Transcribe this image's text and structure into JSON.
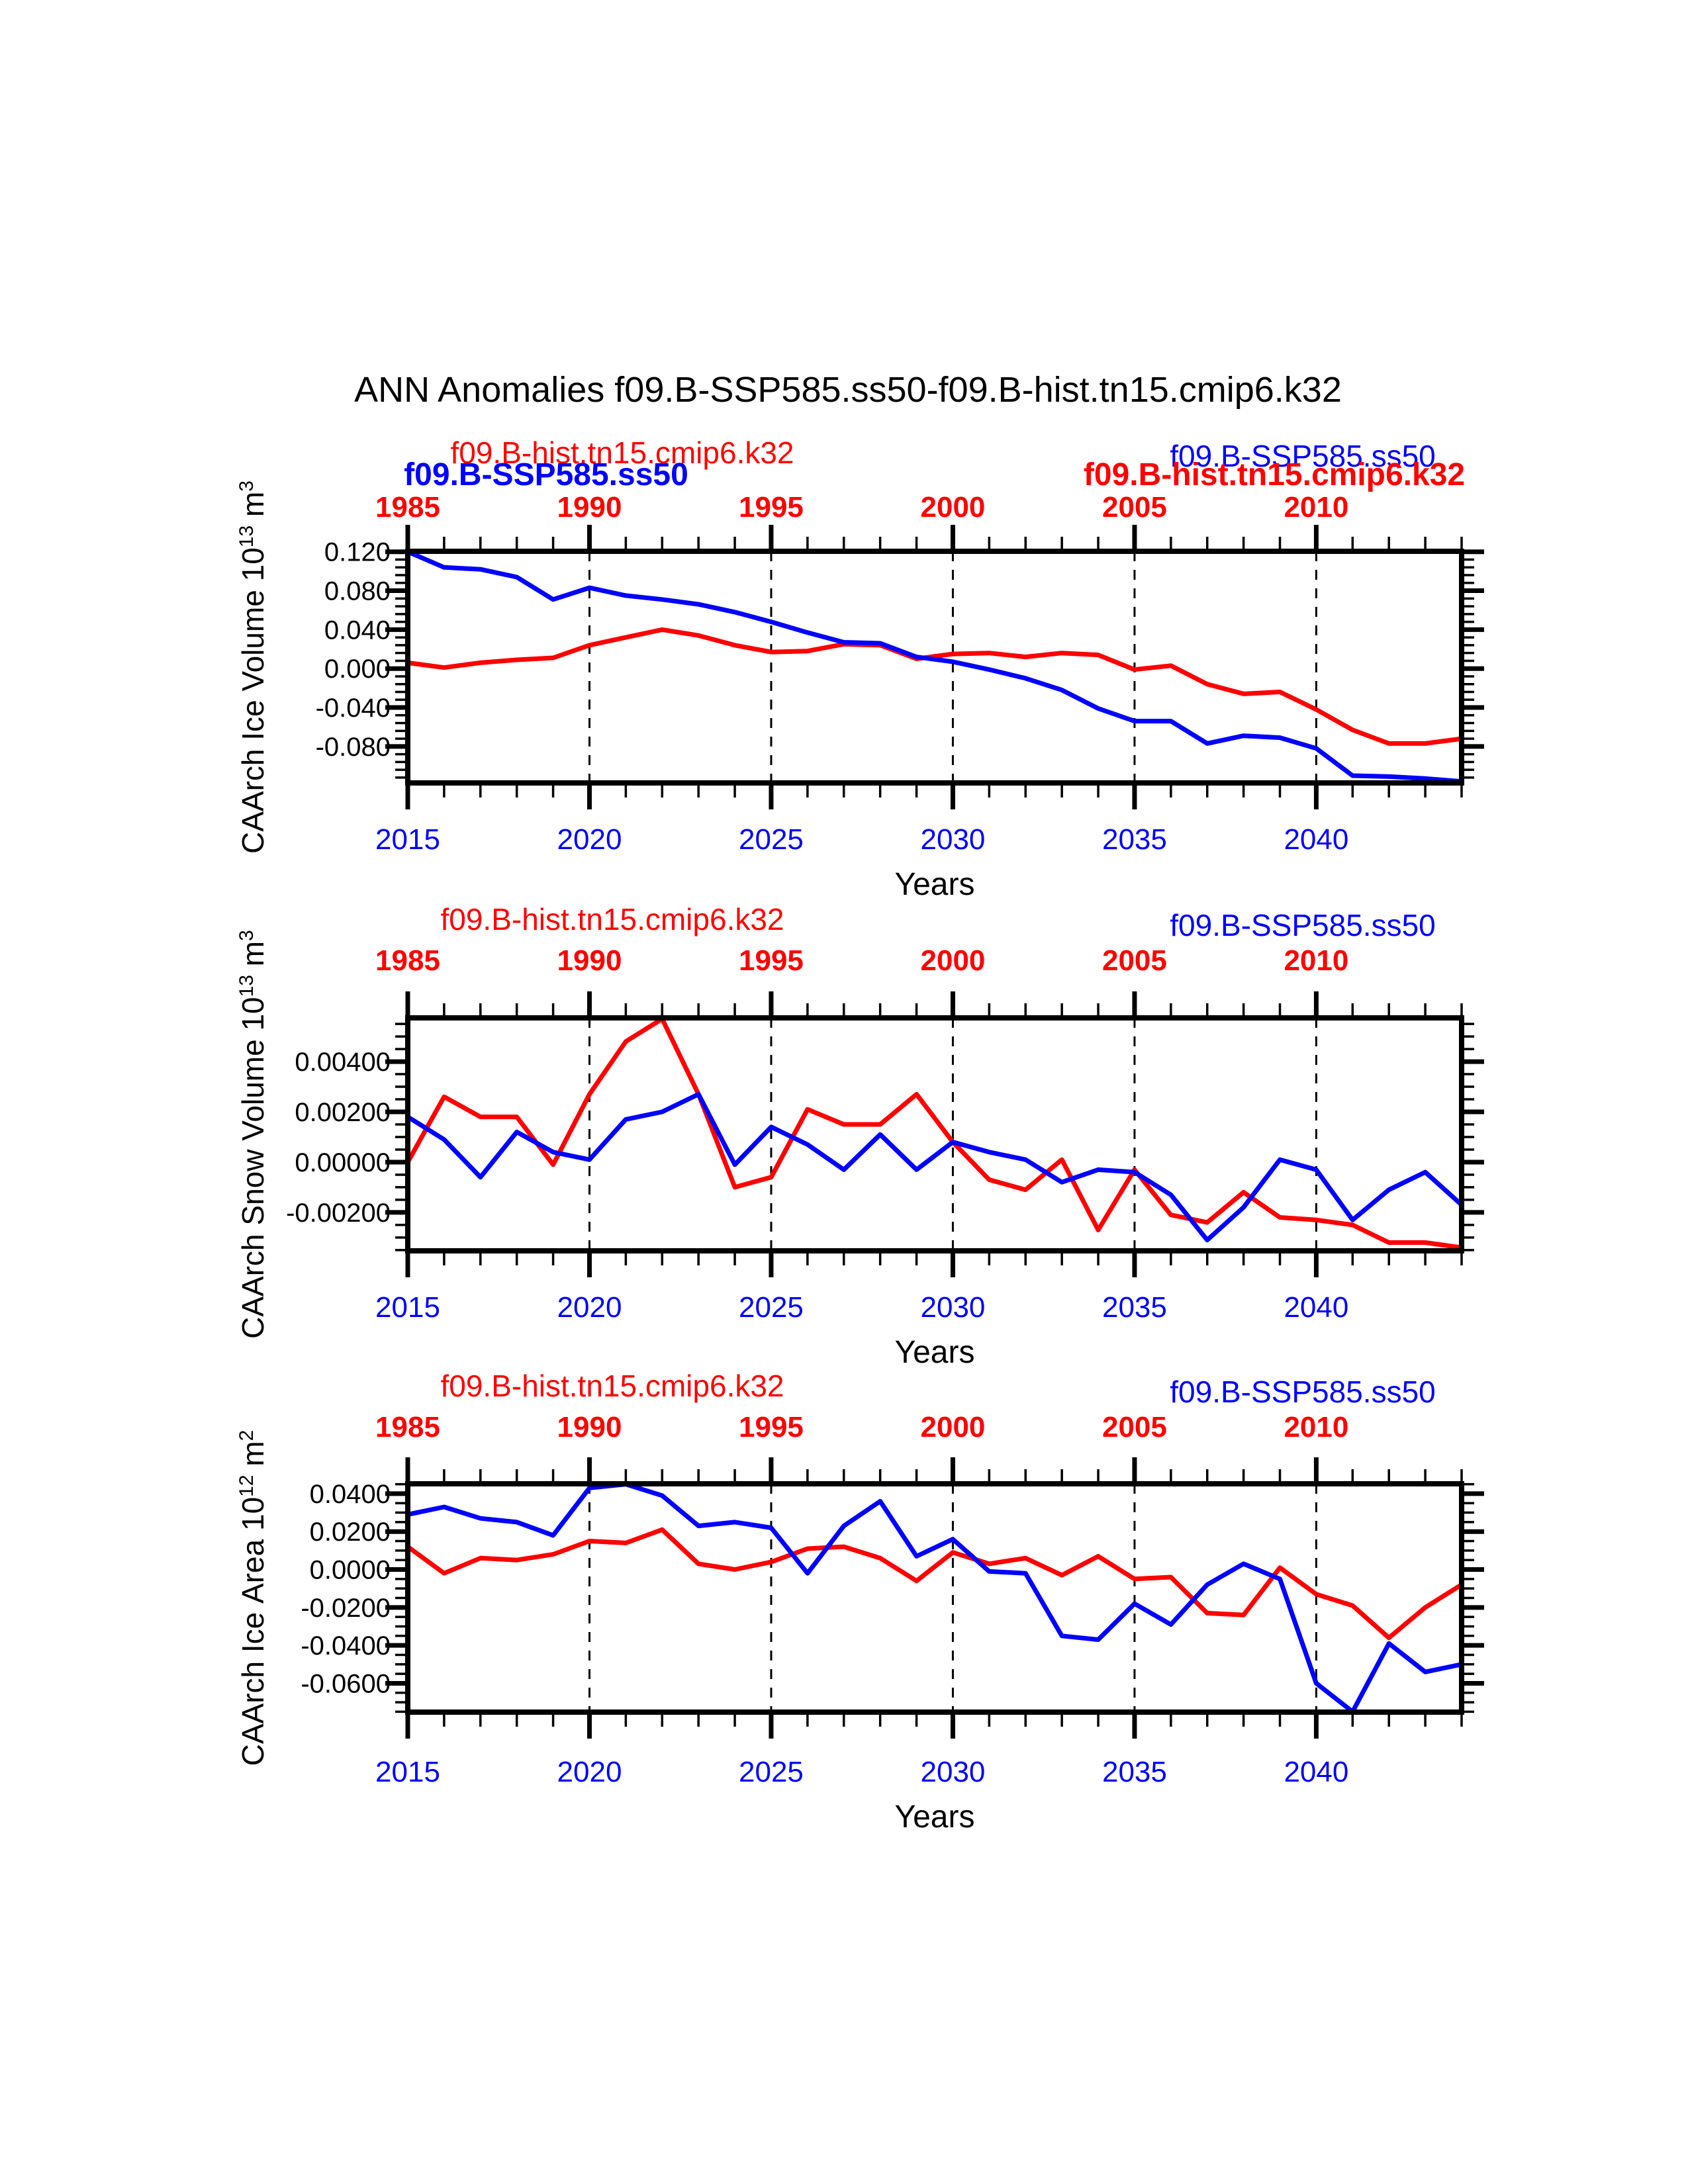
{
  "title": "ANN Anomalies f09.B-SSP585.ss50-f09.B-hist.tn15.cmip6.k32",
  "colors": {
    "red": "#ff0000",
    "blue": "#0000ff",
    "black": "#000000"
  },
  "series_names": {
    "historical": "f09.B-hist.tn15.cmip6.k32",
    "scenario": "f09.B-SSP585.ss50"
  },
  "x_axis": {
    "label": "Years",
    "bottom_year_labels": [
      "2015",
      "2020",
      "2025",
      "2030",
      "2035",
      "2040"
    ],
    "top_year_labels": [
      "1985",
      "1990",
      "1995",
      "2000",
      "2005",
      "2010"
    ]
  },
  "chart_data": [
    {
      "id": "ice-volume",
      "type": "line",
      "ylabel": "CAArch Ice Volume 10^13 m^3",
      "xlabel": "Years",
      "ylim": [
        -0.1175,
        0.1205
      ],
      "xlim": [
        2015,
        2044
      ],
      "ytick_values": [
        0.12,
        0.08,
        0.04,
        0.0,
        -0.04,
        -0.08
      ],
      "ytick_labels": [
        "0.120",
        "0.080",
        "0.040",
        "0.000",
        "-0.040",
        "-0.080"
      ],
      "y_minor_step": 0.008,
      "gridline_years": [
        2020,
        2025,
        2030,
        2035,
        2040
      ],
      "grid": true,
      "legends": [
        {
          "text": "f09.B-hist.tn15.cmip6.k32",
          "color": "red",
          "bold": false,
          "pos": "left-a"
        },
        {
          "text": "f09.B-SSP585.ss50",
          "color": "blue",
          "bold": true,
          "pos": "left-b"
        },
        {
          "text": "f09.B-SSP585.ss50",
          "color": "blue",
          "bold": false,
          "pos": "right-a"
        },
        {
          "text": "f09.B-hist.tn15.cmip6.k32",
          "color": "red",
          "bold": true,
          "pos": "right-b"
        }
      ],
      "series": [
        {
          "name": "f09.B-hist.tn15.cmip6.k32",
          "color": "red",
          "start_year": 1985,
          "plot_offset": 30,
          "values": [
            0.006,
            0.001,
            0.006,
            0.009,
            0.011,
            0.024,
            0.032,
            0.04,
            0.034,
            0.024,
            0.017,
            0.018,
            0.025,
            0.024,
            0.01,
            0.015,
            0.016,
            0.012,
            0.016,
            0.014,
            -0.001,
            0.003,
            -0.016,
            -0.026,
            -0.024,
            -0.042,
            -0.063,
            -0.077,
            -0.077,
            -0.072
          ]
        },
        {
          "name": "f09.B-SSP585.ss50",
          "color": "blue",
          "start_year": 2015,
          "plot_offset": 0,
          "values": [
            0.12,
            0.104,
            0.102,
            0.094,
            0.071,
            0.083,
            0.075,
            0.071,
            0.066,
            0.058,
            0.048,
            0.037,
            0.027,
            0.026,
            0.012,
            0.007,
            -0.001,
            -0.01,
            -0.022,
            -0.041,
            -0.054,
            -0.054,
            -0.077,
            -0.069,
            -0.071,
            -0.082,
            -0.11,
            -0.111,
            -0.113,
            -0.116
          ]
        }
      ]
    },
    {
      "id": "snow-volume",
      "type": "line",
      "ylabel": "CAArch Snow Volume 10^13 m^3",
      "xlabel": "Years",
      "ylim": [
        -0.00353,
        0.00574
      ],
      "xlim": [
        2015,
        2044
      ],
      "ytick_values": [
        0.004,
        0.002,
        0.0,
        -0.002
      ],
      "ytick_labels": [
        "0.00400",
        "0.00200",
        "0.00000",
        "-0.00200"
      ],
      "y_minor_step": 0.0005,
      "gridline_years": [
        2020,
        2025,
        2030,
        2035,
        2040
      ],
      "grid": true,
      "legends": [
        {
          "text": "f09.B-hist.tn15.cmip6.k32",
          "color": "red",
          "bold": false,
          "pos": "left"
        },
        {
          "text": "f09.B-SSP585.ss50",
          "color": "blue",
          "bold": false,
          "pos": "right"
        }
      ],
      "series": [
        {
          "name": "f09.B-hist.tn15.cmip6.k32",
          "color": "red",
          "start_year": 1985,
          "plot_offset": 30,
          "values": [
            0.0,
            0.0026,
            0.0018,
            0.0018,
            -0.0001,
            0.0027,
            0.0048,
            0.0057,
            0.0027,
            -0.001,
            -0.0006,
            0.0021,
            0.0015,
            0.0015,
            0.0027,
            0.0008,
            -0.0007,
            -0.0011,
            0.0001,
            -0.0027,
            -0.0003,
            -0.0021,
            -0.0024,
            -0.0012,
            -0.0022,
            -0.0023,
            -0.0025,
            -0.0032,
            -0.0032,
            -0.0034
          ]
        },
        {
          "name": "f09.B-SSP585.ss50",
          "color": "blue",
          "start_year": 2015,
          "plot_offset": 0,
          "values": [
            0.0018,
            0.0009,
            -0.0006,
            0.0012,
            0.0004,
            0.0001,
            0.0017,
            0.002,
            0.0027,
            -0.0001,
            0.0014,
            0.0007,
            -0.0003,
            0.0011,
            -0.0003,
            0.0008,
            0.0004,
            0.0001,
            -0.0008,
            -0.0003,
            -0.0004,
            -0.0013,
            -0.0031,
            -0.0018,
            0.0001,
            -0.0003,
            -0.0023,
            -0.0011,
            -0.0004,
            -0.0017
          ]
        }
      ]
    },
    {
      "id": "ice-area",
      "type": "line",
      "ylabel": "CAArch Ice Area 10^12 m^2",
      "xlabel": "Years",
      "ylim": [
        -0.0752,
        0.0452
      ],
      "xlim": [
        2015,
        2044
      ],
      "ytick_values": [
        0.04,
        0.02,
        0.0,
        -0.02,
        -0.04,
        -0.06
      ],
      "ytick_labels": [
        "0.0400",
        "0.0200",
        "0.0000",
        "-0.0200",
        "-0.0400",
        "-0.0600"
      ],
      "y_minor_step": 0.005,
      "gridline_years": [
        2020,
        2025,
        2030,
        2035,
        2040
      ],
      "grid": true,
      "legends": [
        {
          "text": "f09.B-hist.tn15.cmip6.k32",
          "color": "red",
          "bold": false,
          "pos": "left"
        },
        {
          "text": "f09.B-SSP585.ss50",
          "color": "blue",
          "bold": false,
          "pos": "right"
        }
      ],
      "series": [
        {
          "name": "f09.B-hist.tn15.cmip6.k32",
          "color": "red",
          "start_year": 1985,
          "plot_offset": 30,
          "values": [
            0.012,
            -0.002,
            0.006,
            0.005,
            0.008,
            0.015,
            0.014,
            0.021,
            0.003,
            0.0,
            0.004,
            0.011,
            0.012,
            0.006,
            -0.006,
            0.009,
            0.003,
            0.006,
            -0.003,
            0.007,
            -0.005,
            -0.004,
            -0.023,
            -0.024,
            0.001,
            -0.013,
            -0.019,
            -0.036,
            -0.02,
            -0.008
          ]
        },
        {
          "name": "f09.B-SSP585.ss50",
          "color": "blue",
          "start_year": 2015,
          "plot_offset": 0,
          "values": [
            0.029,
            0.033,
            0.027,
            0.025,
            0.018,
            0.043,
            0.045,
            0.039,
            0.023,
            0.025,
            0.022,
            -0.002,
            0.023,
            0.036,
            0.007,
            0.016,
            -0.001,
            -0.002,
            -0.035,
            -0.037,
            -0.018,
            -0.029,
            -0.008,
            0.003,
            -0.005,
            -0.06,
            -0.075,
            -0.039,
            -0.054,
            -0.05
          ]
        }
      ]
    }
  ]
}
